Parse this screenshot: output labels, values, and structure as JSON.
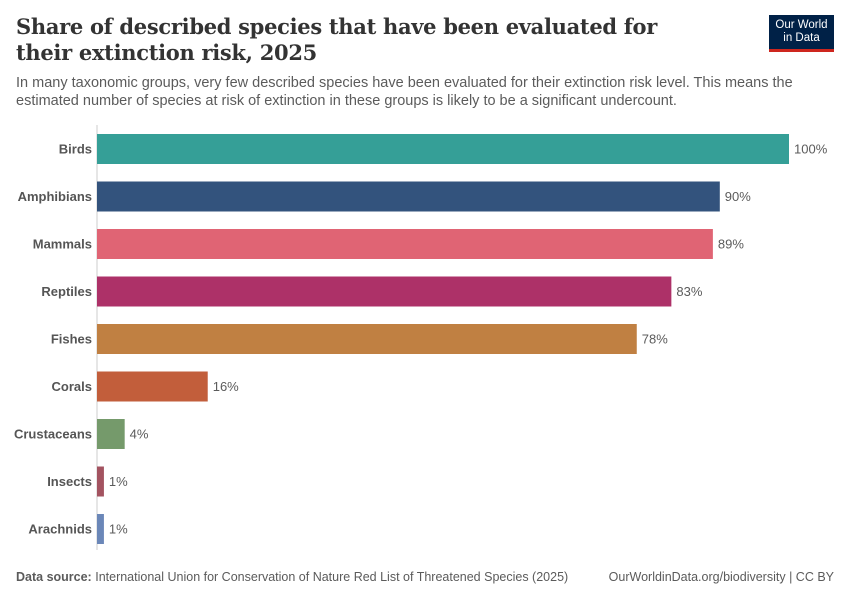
{
  "header": {
    "title": "Share of described species that have been evaluated for their extinction risk, 2025",
    "subtitle": "In many taxonomic groups, very few described species have been evaluated for their extinction risk level. This means the estimated number of species at risk of extinction in these groups is likely to be a significant undercount.",
    "logo_line1": "Our World",
    "logo_line2": "in Data"
  },
  "footer": {
    "source_label": "Data source:",
    "source_text": "International Union for Conservation of Nature Red List of Threatened Species (2025)",
    "url_license": "OurWorldinData.org/biodiversity | CC BY"
  },
  "colors": {
    "logo_bg": "#002147",
    "logo_accent": "#ce261e",
    "axis": "#dddddd",
    "label_text": "#555555",
    "value_text": "#5b5b5b"
  },
  "chart_data": {
    "type": "bar",
    "orientation": "horizontal",
    "title": "Share of described species that have been evaluated for their extinction risk, 2025",
    "xlabel": "",
    "ylabel": "",
    "xlim": [
      0,
      100
    ],
    "unit": "%",
    "grid": false,
    "categories": [
      "Birds",
      "Amphibians",
      "Mammals",
      "Reptiles",
      "Fishes",
      "Corals",
      "Crustaceans",
      "Insects",
      "Arachnids"
    ],
    "values": [
      100,
      90,
      89,
      83,
      78,
      16,
      4,
      1,
      1
    ],
    "value_labels": [
      "100%",
      "90%",
      "89%",
      "83%",
      "78%",
      "16%",
      "4%",
      "1%",
      "1%"
    ],
    "bar_colors": [
      "#359f97",
      "#33537d",
      "#e06474",
      "#ad3168",
      "#c08042",
      "#c25e3b",
      "#759a6b",
      "#a35360",
      "#6b87b8"
    ]
  }
}
